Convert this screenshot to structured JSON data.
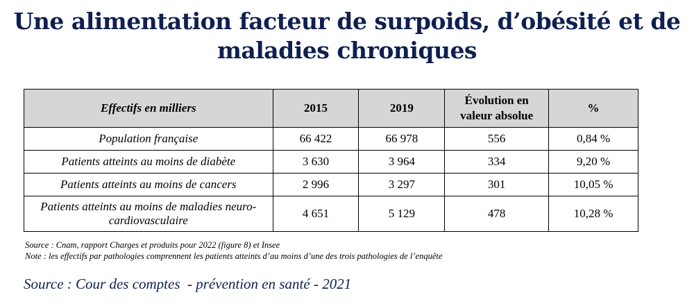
{
  "title": "Une alimentation facteur de surpoids, d’obésité et de maladies chroniques",
  "table": {
    "headers": [
      "Effectifs en milliers",
      "2015",
      "2019",
      "Évolution en valeur absolue",
      "%"
    ],
    "rows": [
      [
        "Population française",
        "66 422",
        "66 978",
        "556",
        "0,84 %"
      ],
      [
        "Patients atteints au moins de diabète",
        "3 630",
        "3 964",
        "334",
        "9,20 %"
      ],
      [
        "Patients atteints au moins de cancers",
        "2 996",
        "3 297",
        "301",
        "10,05 %"
      ],
      [
        "Patients atteints au moins de maladies neuro-cardiovasculaire",
        "4 651",
        "5 129",
        "478",
        "10,28 %"
      ]
    ]
  },
  "source_note": "Source : Cnam, rapport Charges et produits pour 2022 (figure 8) et Insee",
  "note": "Note : les effectifs par pathologies comprennent les patients atteints d’au moins d’une des trois pathologies de l’enquête",
  "source_credit": "Source : Cour des comptes  - prévention en santé - 2021"
}
